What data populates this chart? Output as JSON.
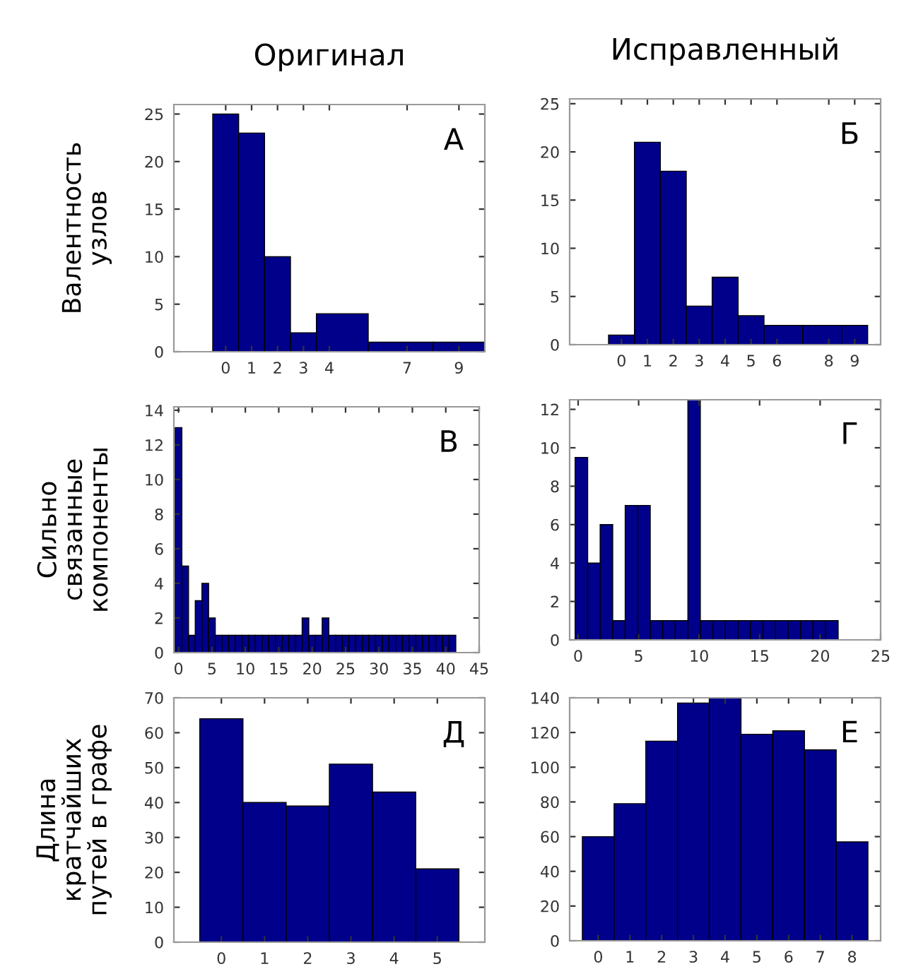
{
  "chart_data": [
    {
      "type": "histogram",
      "title": "Оригинал",
      "ylabel": "Валентность\nузлов",
      "annotations": [
        "А"
      ],
      "color": "#00008b",
      "bins": [
        -0.5,
        0.5,
        1.5,
        2.5,
        3.5,
        5.5,
        8,
        10
      ],
      "values": [
        25,
        23,
        10,
        2,
        4,
        1,
        1
      ],
      "xlim": [
        -2,
        10
      ],
      "xticks": [
        0,
        1,
        2,
        3,
        4,
        7,
        9
      ],
      "ylim": [
        0,
        26
      ],
      "yticks": [
        0,
        5,
        10,
        15,
        20,
        25
      ]
    },
    {
      "type": "histogram",
      "title": "Исправленный",
      "annotations": [
        "Б"
      ],
      "color": "#00008b",
      "bins": [
        -0.5,
        0.5,
        1.5,
        2.5,
        3.5,
        4.5,
        5.5,
        7,
        8.5,
        9.5
      ],
      "values": [
        1,
        21,
        18,
        4,
        7,
        3,
        2,
        2,
        2
      ],
      "xlim": [
        -2,
        10
      ],
      "xticks": [
        0,
        1,
        2,
        3,
        4,
        5,
        6,
        8,
        9
      ],
      "ylim": [
        0,
        25.5
      ],
      "yticks": [
        0,
        5,
        10,
        15,
        20,
        25
      ]
    },
    {
      "type": "histogram",
      "ylabel": "Сильно\nсвязанные\nкомпоненты",
      "annotations": [
        "В"
      ],
      "color": "#00008b",
      "bins": [
        -0.5,
        0.5,
        1.5,
        2.5,
        3.5,
        4.5,
        5.5,
        6.5,
        7.5,
        8.5,
        9.5,
        10.5,
        11.5,
        12.5,
        13.5,
        14.5,
        15.5,
        16.5,
        17.5,
        18.5,
        19.5,
        20.5,
        21.5,
        22.5,
        23.5,
        24.5,
        25.5,
        26.5,
        27.5,
        28.5,
        29.5,
        30.5,
        31.5,
        32.5,
        33.5,
        34.5,
        35.5,
        36.5,
        37.5,
        38.5,
        39.5,
        40.5,
        41.5
      ],
      "values": [
        13,
        5,
        1,
        3,
        4,
        2,
        1,
        1,
        1,
        1,
        1,
        1,
        1,
        1,
        1,
        1,
        1,
        1,
        1,
        2,
        1,
        1,
        2,
        1,
        1,
        1,
        1,
        1,
        1,
        1,
        1,
        1,
        1,
        1,
        1,
        1,
        1,
        1,
        1,
        1,
        1,
        1
      ],
      "xlim": [
        -0.7,
        45
      ],
      "xticks": [
        0,
        5,
        10,
        15,
        20,
        25,
        30,
        35,
        40,
        45
      ],
      "ylim": [
        0,
        14.2
      ],
      "yticks": [
        0,
        2,
        4,
        6,
        8,
        10,
        12,
        14
      ]
    },
    {
      "type": "histogram",
      "annotations": [
        "Г"
      ],
      "color": "#00008b",
      "bins": [
        -0.25,
        0.79,
        1.82,
        2.86,
        3.89,
        4.93,
        5.96,
        7.0,
        8.03,
        9.07,
        10.1,
        11.14,
        12.17,
        13.21,
        14.24,
        15.28,
        16.31,
        17.35,
        18.38,
        19.42,
        20.45,
        21.49
      ],
      "values": [
        9.5,
        4,
        6,
        1,
        7,
        7,
        1,
        1,
        1,
        12.5,
        1,
        1,
        1,
        1,
        1,
        1,
        1,
        1,
        1,
        1,
        1
      ],
      "xlim": [
        -0.7,
        25
      ],
      "xticks": [
        0,
        5,
        10,
        15,
        20,
        25
      ],
      "ylim": [
        0,
        12.5
      ],
      "yticks": [
        0,
        2,
        4,
        6,
        8,
        10,
        12
      ]
    },
    {
      "type": "histogram",
      "ylabel": "Длина\nкратчайших\nпутей в графе",
      "annotations": [
        "Д"
      ],
      "color": "#00008b",
      "bins": [
        -0.5,
        0.5,
        1.5,
        2.5,
        3.5,
        4.5,
        5.5
      ],
      "values": [
        64,
        40,
        39,
        51,
        43,
        21
      ],
      "xlim": [
        -1.1,
        6.1
      ],
      "xticks": [
        0,
        1,
        2,
        3,
        4,
        5
      ],
      "ylim": [
        0,
        70
      ],
      "yticks": [
        0,
        10,
        20,
        30,
        40,
        50,
        60,
        70
      ]
    },
    {
      "type": "histogram",
      "annotations": [
        "Е"
      ],
      "color": "#00008b",
      "bins": [
        -0.5,
        0.5,
        1.5,
        2.5,
        3.5,
        4.5,
        5.5,
        6.5,
        7.5,
        8.5
      ],
      "values": [
        60,
        79,
        115,
        137,
        140,
        119,
        121,
        110,
        57
      ],
      "xlim": [
        -0.9,
        8.9
      ],
      "xticks": [
        0,
        1,
        2,
        3,
        4,
        5,
        6,
        7,
        8
      ],
      "ylim": [
        0,
        140
      ],
      "yticks": [
        0,
        20,
        40,
        60,
        80,
        100,
        120,
        140
      ]
    }
  ]
}
